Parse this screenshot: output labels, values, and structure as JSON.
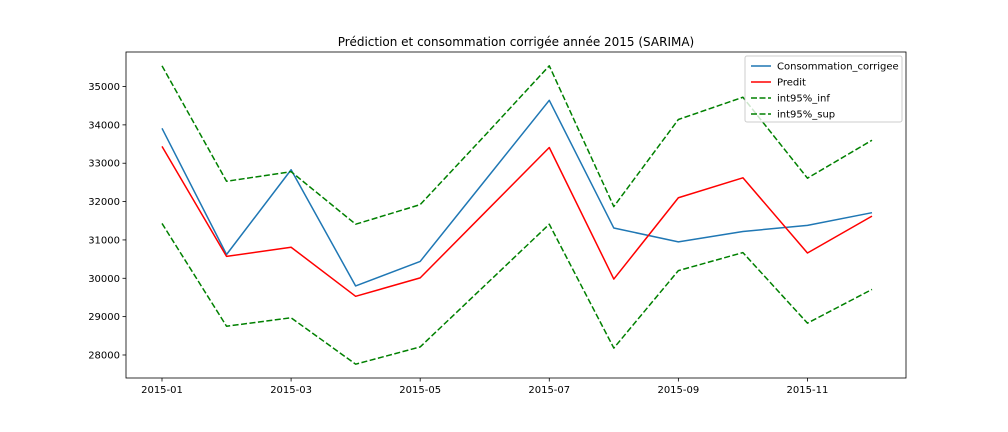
{
  "chart_data": {
    "type": "line",
    "title": "Prédiction et consommation corrigée année 2015 (SARIMA)",
    "xlabel": "",
    "ylabel": "",
    "x": [
      "2015-01",
      "2015-02",
      "2015-03",
      "2015-04",
      "2015-05",
      "2015-06",
      "2015-07",
      "2015-08",
      "2015-09",
      "2015-10",
      "2015-11",
      "2015-12"
    ],
    "x_tick_labels": [
      "2015-01",
      "2015-03",
      "2015-05",
      "2015-07",
      "2015-09",
      "2015-11"
    ],
    "y_ticks": [
      28000,
      29000,
      30000,
      31000,
      32000,
      33000,
      34000,
      35000
    ],
    "ylim": [
      27400,
      35900
    ],
    "grid": false,
    "legend_position": "top-right",
    "series": [
      {
        "name": "Consommation_corrigee",
        "color": "#1f77b4",
        "style": "solid",
        "values": [
          33910,
          30620,
          32830,
          29800,
          30440,
          32540,
          34640,
          31310,
          30950,
          31220,
          31380,
          31710
        ]
      },
      {
        "name": "Predit",
        "color": "#ff0000",
        "style": "solid",
        "values": [
          33440,
          30570,
          30810,
          29530,
          30010,
          31710,
          33410,
          29980,
          32100,
          32620,
          30660,
          31620
        ]
      },
      {
        "name": "int95%_inf",
        "color": "#008000",
        "style": "dashed",
        "values": [
          35540,
          32530,
          32780,
          31410,
          31920,
          33720,
          35540,
          31870,
          34140,
          34720,
          32610,
          33600
        ]
      },
      {
        "name": "int95%_sup",
        "color": "#008000",
        "style": "dashed",
        "values": [
          31430,
          28750,
          28970,
          27760,
          28210,
          29810,
          31410,
          28180,
          30200,
          30670,
          28830,
          29710
        ]
      }
    ]
  }
}
